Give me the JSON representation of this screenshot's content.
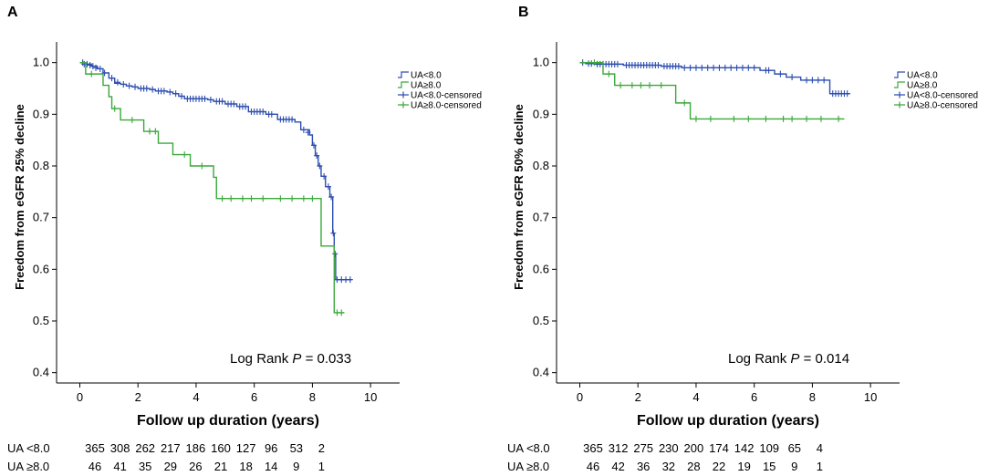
{
  "colors": {
    "low": "#2e4eb0",
    "high": "#3aa83a"
  },
  "chart_data": [
    {
      "type": "line",
      "panel_label": "A",
      "ylabel": "Freedom from eGFR 25% decline",
      "xlabel": "Follow up duration (years)",
      "xlim": [
        -0.8,
        11
      ],
      "ylim": [
        0.38,
        1.04
      ],
      "xticks": [
        0,
        2,
        4,
        6,
        8,
        10
      ],
      "yticks": [
        0.4,
        0.5,
        0.6,
        0.7,
        0.8,
        0.9,
        1.0
      ],
      "ytick_labels": [
        "0.4",
        "0.5",
        "0.6",
        "0.7",
        "0.8",
        "0.9",
        "1.0"
      ],
      "annotation": {
        "prefix": "Log Rank ",
        "italic": "P",
        "suffix": " = 0.033"
      },
      "legend": [
        "UA<8.0",
        "UA≥8.0",
        "UA<8.0-censored",
        "UA≥8.0-censored"
      ],
      "series": [
        {
          "name": "UA<8.0",
          "color_key": "low",
          "steps": [
            [
              0,
              1.0
            ],
            [
              0.2,
              0.997
            ],
            [
              0.4,
              0.993
            ],
            [
              0.6,
              0.988
            ],
            [
              0.8,
              0.98
            ],
            [
              1.0,
              0.97
            ],
            [
              1.2,
              0.96
            ],
            [
              1.4,
              0.958
            ],
            [
              1.6,
              0.955
            ],
            [
              1.8,
              0.953
            ],
            [
              2.0,
              0.95
            ],
            [
              2.4,
              0.948
            ],
            [
              2.6,
              0.945
            ],
            [
              3.0,
              0.943
            ],
            [
              3.2,
              0.94
            ],
            [
              3.4,
              0.935
            ],
            [
              3.6,
              0.93
            ],
            [
              4.4,
              0.928
            ],
            [
              4.6,
              0.925
            ],
            [
              5.0,
              0.92
            ],
            [
              5.4,
              0.915
            ],
            [
              5.8,
              0.905
            ],
            [
              6.4,
              0.9
            ],
            [
              6.8,
              0.89
            ],
            [
              7.4,
              0.885
            ],
            [
              7.6,
              0.87
            ],
            [
              7.9,
              0.86
            ],
            [
              8.0,
              0.84
            ],
            [
              8.1,
              0.82
            ],
            [
              8.2,
              0.8
            ],
            [
              8.3,
              0.78
            ],
            [
              8.45,
              0.76
            ],
            [
              8.6,
              0.74
            ],
            [
              8.7,
              0.67
            ],
            [
              8.75,
              0.63
            ],
            [
              8.8,
              0.58
            ],
            [
              9.35,
              0.58
            ]
          ],
          "censored": [
            [
              0.1,
              1.0
            ],
            [
              0.15,
              0.997
            ],
            [
              0.25,
              0.997
            ],
            [
              0.35,
              0.995
            ],
            [
              0.45,
              0.993
            ],
            [
              0.55,
              0.99
            ],
            [
              0.7,
              0.988
            ],
            [
              0.85,
              0.98
            ],
            [
              1.1,
              0.97
            ],
            [
              1.3,
              0.962
            ],
            [
              1.5,
              0.958
            ],
            [
              1.7,
              0.955
            ],
            [
              1.9,
              0.953
            ],
            [
              2.1,
              0.95
            ],
            [
              2.2,
              0.95
            ],
            [
              2.3,
              0.95
            ],
            [
              2.5,
              0.948
            ],
            [
              2.7,
              0.945
            ],
            [
              2.8,
              0.945
            ],
            [
              2.9,
              0.945
            ],
            [
              3.1,
              0.943
            ],
            [
              3.3,
              0.94
            ],
            [
              3.5,
              0.935
            ],
            [
              3.7,
              0.93
            ],
            [
              3.8,
              0.93
            ],
            [
              3.9,
              0.93
            ],
            [
              4.0,
              0.93
            ],
            [
              4.1,
              0.93
            ],
            [
              4.2,
              0.93
            ],
            [
              4.3,
              0.93
            ],
            [
              4.5,
              0.928
            ],
            [
              4.7,
              0.925
            ],
            [
              4.8,
              0.925
            ],
            [
              4.9,
              0.925
            ],
            [
              5.1,
              0.92
            ],
            [
              5.2,
              0.92
            ],
            [
              5.3,
              0.92
            ],
            [
              5.5,
              0.915
            ],
            [
              5.6,
              0.915
            ],
            [
              5.7,
              0.915
            ],
            [
              5.9,
              0.905
            ],
            [
              6.0,
              0.905
            ],
            [
              6.1,
              0.905
            ],
            [
              6.2,
              0.905
            ],
            [
              6.3,
              0.905
            ],
            [
              6.5,
              0.9
            ],
            [
              6.6,
              0.9
            ],
            [
              6.9,
              0.89
            ],
            [
              7.0,
              0.89
            ],
            [
              7.1,
              0.89
            ],
            [
              7.2,
              0.89
            ],
            [
              7.3,
              0.89
            ],
            [
              7.7,
              0.87
            ],
            [
              7.85,
              0.865
            ],
            [
              8.05,
              0.84
            ],
            [
              8.15,
              0.82
            ],
            [
              8.25,
              0.8
            ],
            [
              8.4,
              0.78
            ],
            [
              8.55,
              0.76
            ],
            [
              8.65,
              0.74
            ],
            [
              8.72,
              0.67
            ],
            [
              8.78,
              0.63
            ],
            [
              8.85,
              0.58
            ],
            [
              9.0,
              0.58
            ],
            [
              9.15,
              0.58
            ],
            [
              9.3,
              0.58
            ]
          ]
        },
        {
          "name": "UA≥8.0",
          "color_key": "high",
          "steps": [
            [
              0,
              1.0
            ],
            [
              0.2,
              0.978
            ],
            [
              0.8,
              0.956
            ],
            [
              1.0,
              0.934
            ],
            [
              1.1,
              0.911
            ],
            [
              1.4,
              0.889
            ],
            [
              2.2,
              0.867
            ],
            [
              2.7,
              0.844
            ],
            [
              3.2,
              0.822
            ],
            [
              3.8,
              0.8
            ],
            [
              4.6,
              0.778
            ],
            [
              4.7,
              0.737
            ],
            [
              8.2,
              0.737
            ],
            [
              8.3,
              0.645
            ],
            [
              8.7,
              0.645
            ],
            [
              8.75,
              0.516
            ],
            [
              9.1,
              0.516
            ]
          ],
          "censored": [
            [
              0.4,
              0.978
            ],
            [
              1.2,
              0.911
            ],
            [
              1.8,
              0.889
            ],
            [
              2.4,
              0.867
            ],
            [
              2.6,
              0.867
            ],
            [
              3.6,
              0.822
            ],
            [
              4.2,
              0.8
            ],
            [
              4.9,
              0.737
            ],
            [
              5.2,
              0.737
            ],
            [
              5.6,
              0.737
            ],
            [
              5.9,
              0.737
            ],
            [
              6.3,
              0.737
            ],
            [
              6.9,
              0.737
            ],
            [
              7.3,
              0.737
            ],
            [
              7.7,
              0.737
            ],
            [
              8.0,
              0.737
            ],
            [
              8.85,
              0.516
            ],
            [
              9.0,
              0.516
            ]
          ]
        }
      ],
      "risk_table": {
        "rows": [
          {
            "label": "UA <8.0",
            "values": [
              "365",
              "308",
              "262",
              "217",
              "186",
              "160",
              "127",
              "96",
              "53",
              "2"
            ]
          },
          {
            "label": "UA ≥8.0",
            "values": [
              "46",
              "41",
              "35",
              "29",
              "26",
              "21",
              "18",
              "14",
              "9",
              "1"
            ]
          }
        ]
      }
    },
    {
      "type": "line",
      "panel_label": "B",
      "ylabel": "Freedom from eGFR 50% decline",
      "xlabel": "Follow up duration (years)",
      "xlim": [
        -0.8,
        11
      ],
      "ylim": [
        0.38,
        1.04
      ],
      "xticks": [
        0,
        2,
        4,
        6,
        8,
        10
      ],
      "yticks": [
        0.4,
        0.5,
        0.6,
        0.7,
        0.8,
        0.9,
        1.0
      ],
      "ytick_labels": [
        "0.4",
        "0.5",
        "0.6",
        "0.7",
        "0.8",
        "0.9",
        "1.0"
      ],
      "annotation": {
        "prefix": "Log Rank ",
        "italic": "P",
        "suffix": " = 0.014"
      },
      "legend": [
        "UA<8.0",
        "UA≥8.0",
        "UA<8.0-censored",
        "UA≥8.0-censored"
      ],
      "series": [
        {
          "name": "UA<8.0",
          "color_key": "low",
          "steps": [
            [
              0,
              1.0
            ],
            [
              0.2,
              0.998
            ],
            [
              0.5,
              0.997
            ],
            [
              1.5,
              0.995
            ],
            [
              2.8,
              0.993
            ],
            [
              3.5,
              0.99
            ],
            [
              6.2,
              0.985
            ],
            [
              6.7,
              0.978
            ],
            [
              7.1,
              0.972
            ],
            [
              7.6,
              0.966
            ],
            [
              8.6,
              0.94
            ],
            [
              9.3,
              0.94
            ]
          ],
          "censored": [
            [
              0.1,
              1.0
            ],
            [
              0.3,
              0.998
            ],
            [
              0.4,
              0.998
            ],
            [
              0.6,
              0.997
            ],
            [
              0.7,
              0.997
            ],
            [
              0.8,
              0.997
            ],
            [
              0.9,
              0.997
            ],
            [
              1.0,
              0.997
            ],
            [
              1.1,
              0.997
            ],
            [
              1.2,
              0.997
            ],
            [
              1.3,
              0.997
            ],
            [
              1.6,
              0.995
            ],
            [
              1.7,
              0.995
            ],
            [
              1.8,
              0.995
            ],
            [
              1.9,
              0.995
            ],
            [
              2.0,
              0.995
            ],
            [
              2.1,
              0.995
            ],
            [
              2.2,
              0.995
            ],
            [
              2.3,
              0.995
            ],
            [
              2.4,
              0.995
            ],
            [
              2.5,
              0.995
            ],
            [
              2.6,
              0.995
            ],
            [
              2.7,
              0.995
            ],
            [
              2.9,
              0.993
            ],
            [
              3.0,
              0.993
            ],
            [
              3.1,
              0.993
            ],
            [
              3.2,
              0.993
            ],
            [
              3.3,
              0.993
            ],
            [
              3.4,
              0.993
            ],
            [
              3.6,
              0.99
            ],
            [
              3.8,
              0.99
            ],
            [
              4.0,
              0.99
            ],
            [
              4.2,
              0.99
            ],
            [
              4.4,
              0.99
            ],
            [
              4.6,
              0.99
            ],
            [
              4.8,
              0.99
            ],
            [
              5.0,
              0.99
            ],
            [
              5.2,
              0.99
            ],
            [
              5.4,
              0.99
            ],
            [
              5.6,
              0.99
            ],
            [
              5.8,
              0.99
            ],
            [
              6.0,
              0.99
            ],
            [
              6.4,
              0.985
            ],
            [
              6.5,
              0.985
            ],
            [
              6.9,
              0.978
            ],
            [
              7.3,
              0.972
            ],
            [
              7.8,
              0.966
            ],
            [
              8.0,
              0.966
            ],
            [
              8.2,
              0.966
            ],
            [
              8.4,
              0.966
            ],
            [
              8.7,
              0.94
            ],
            [
              8.8,
              0.94
            ],
            [
              8.9,
              0.94
            ],
            [
              9.0,
              0.94
            ],
            [
              9.1,
              0.94
            ],
            [
              9.2,
              0.94
            ]
          ]
        },
        {
          "name": "UA≥8.0",
          "color_key": "high",
          "steps": [
            [
              0,
              1.0
            ],
            [
              0.8,
              0.978
            ],
            [
              1.2,
              0.956
            ],
            [
              3.3,
              0.922
            ],
            [
              3.8,
              0.891
            ],
            [
              9.1,
              0.891
            ]
          ],
          "censored": [
            [
              0.5,
              1.0
            ],
            [
              1.0,
              0.978
            ],
            [
              1.4,
              0.956
            ],
            [
              1.8,
              0.956
            ],
            [
              2.1,
              0.956
            ],
            [
              2.4,
              0.956
            ],
            [
              2.8,
              0.956
            ],
            [
              3.6,
              0.922
            ],
            [
              4.0,
              0.891
            ],
            [
              4.5,
              0.891
            ],
            [
              5.3,
              0.891
            ],
            [
              5.8,
              0.891
            ],
            [
              6.4,
              0.891
            ],
            [
              7.0,
              0.891
            ],
            [
              7.3,
              0.891
            ],
            [
              7.8,
              0.891
            ],
            [
              8.3,
              0.891
            ],
            [
              8.9,
              0.891
            ]
          ]
        }
      ],
      "risk_table": {
        "rows": [
          {
            "label": "UA <8.0",
            "values": [
              "365",
              "312",
              "275",
              "230",
              "200",
              "174",
              "142",
              "109",
              "65",
              "4"
            ]
          },
          {
            "label": "UA ≥8.0",
            "values": [
              "46",
              "42",
              "36",
              "32",
              "28",
              "22",
              "19",
              "15",
              "9",
              "1"
            ]
          }
        ]
      }
    }
  ]
}
